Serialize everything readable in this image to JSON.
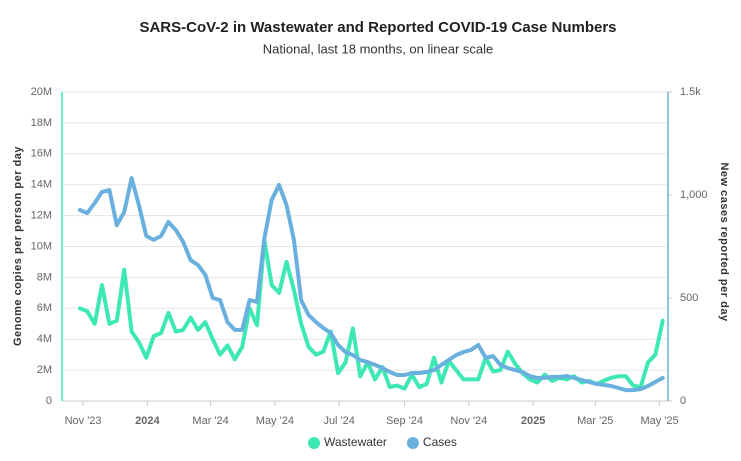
{
  "chart_data": {
    "type": "line",
    "title": "SARS-CoV-2 in Wastewater and Reported COVID-19 Case Numbers",
    "subtitle": "National, last 18 months, on linear scale",
    "ylabel": "Genome copies per person per day",
    "y2label": "New cases reported per day",
    "x": [
      "2023-10-29",
      "2023-11-05",
      "2023-11-12",
      "2023-11-19",
      "2023-11-26",
      "2023-12-03",
      "2023-12-10",
      "2023-12-17",
      "2023-12-24",
      "2023-12-31",
      "2024-01-07",
      "2024-01-14",
      "2024-01-21",
      "2024-01-28",
      "2024-02-04",
      "2024-02-11",
      "2024-02-18",
      "2024-02-25",
      "2024-03-03",
      "2024-03-10",
      "2024-03-17",
      "2024-03-24",
      "2024-03-31",
      "2024-04-07",
      "2024-04-14",
      "2024-04-21",
      "2024-04-28",
      "2024-05-05",
      "2024-05-12",
      "2024-05-19",
      "2024-05-26",
      "2024-06-02",
      "2024-06-09",
      "2024-06-16",
      "2024-06-23",
      "2024-06-30",
      "2024-07-07",
      "2024-07-14",
      "2024-07-21",
      "2024-07-28",
      "2024-08-04",
      "2024-08-11",
      "2024-08-18",
      "2024-08-25",
      "2024-09-01",
      "2024-09-08",
      "2024-09-15",
      "2024-09-22",
      "2024-09-29",
      "2024-10-06",
      "2024-10-13",
      "2024-10-20",
      "2024-10-27",
      "2024-11-03",
      "2024-11-10",
      "2024-11-17",
      "2024-11-24",
      "2024-12-01",
      "2024-12-08",
      "2024-12-15",
      "2024-12-22",
      "2024-12-29",
      "2025-01-05",
      "2025-01-12",
      "2025-01-19",
      "2025-01-26",
      "2025-02-02",
      "2025-02-09",
      "2025-02-16",
      "2025-02-23",
      "2025-03-02",
      "2025-03-09",
      "2025-03-16",
      "2025-03-23",
      "2025-03-30",
      "2025-04-06",
      "2025-04-13",
      "2025-04-20",
      "2025-04-27",
      "2025-05-04"
    ],
    "xlim": [
      "2023-10-12",
      "2025-05-09"
    ],
    "xticks": [
      {
        "value": "2023-11-01",
        "label": "Nov '23"
      },
      {
        "value": "2024-01-01",
        "label": "2024"
      },
      {
        "value": "2024-03-01",
        "label": "Mar '24"
      },
      {
        "value": "2024-05-01",
        "label": "May '24"
      },
      {
        "value": "2024-07-01",
        "label": "Jul '24"
      },
      {
        "value": "2024-09-01",
        "label": "Sep '24"
      },
      {
        "value": "2024-11-01",
        "label": "Nov '24"
      },
      {
        "value": "2025-01-01",
        "label": "2025"
      },
      {
        "value": "2025-03-01",
        "label": "Mar '25"
      },
      {
        "value": "2025-05-01",
        "label": "May '25"
      }
    ],
    "ylim": [
      0,
      20000000
    ],
    "yticks": [
      0,
      {
        "value": 2000000,
        "label": "2M"
      },
      {
        "value": 4000000,
        "label": "4M"
      },
      {
        "value": 6000000,
        "label": "6M"
      },
      {
        "value": 8000000,
        "label": "8M"
      },
      {
        "value": 10000000,
        "label": "10M"
      },
      {
        "value": 12000000,
        "label": "12M"
      },
      {
        "value": 14000000,
        "label": "14M"
      },
      {
        "value": 16000000,
        "label": "16M"
      },
      {
        "value": 18000000,
        "label": "18M"
      },
      {
        "value": 20000000,
        "label": "20M"
      }
    ],
    "y2lim": [
      0,
      1500
    ],
    "y2ticks": [
      0,
      500,
      {
        "value": 1000,
        "label": "1,000"
      },
      {
        "value": 1500,
        "label": "1.5k"
      }
    ],
    "grid": true,
    "legend": "bottom",
    "series": [
      {
        "name": "Wastewater",
        "color": "#3ee8b5",
        "axis": "y",
        "values": [
          6000000,
          5800000,
          5000000,
          7500000,
          5000000,
          5200000,
          8500000,
          4500000,
          3800000,
          2800000,
          4200000,
          4400000,
          5700000,
          4500000,
          4600000,
          5400000,
          4600000,
          5100000,
          4000000,
          3000000,
          3600000,
          2700000,
          3500000,
          6000000,
          4900000,
          10400000,
          7500000,
          7000000,
          9000000,
          7200000,
          5000000,
          3500000,
          3000000,
          3200000,
          4500000,
          1800000,
          2500000,
          4700000,
          1600000,
          2500000,
          1400000,
          2200000,
          900000,
          1000000,
          800000,
          1700000,
          900000,
          1100000,
          2800000,
          1200000,
          2600000,
          2000000,
          1400000,
          1400000,
          1400000,
          2800000,
          1900000,
          2000000,
          3200000,
          2400000,
          1800000,
          1400000,
          1200000,
          1700000,
          1300000,
          1500000,
          1400000,
          1600000,
          1200000,
          1300000,
          1100000,
          1300000,
          1500000,
          1600000,
          1600000,
          1000000,
          900000,
          2500000,
          3000000,
          5200000
        ]
      },
      {
        "name": "Cases",
        "color": "#6ab0de",
        "axis": "y2",
        "values": [
          927,
          912,
          961,
          1015,
          1024,
          854,
          917,
          1082,
          951,
          801,
          782,
          801,
          869,
          830,
          772,
          684,
          660,
          612,
          500,
          490,
          383,
          345,
          345,
          490,
          481,
          791,
          976,
          1049,
          951,
          782,
          490,
          417,
          383,
          354,
          330,
          272,
          238,
          223,
          199,
          189,
          175,
          160,
          141,
          126,
          126,
          136,
          136,
          141,
          150,
          175,
          199,
          223,
          238,
          248,
          272,
          209,
          218,
          175,
          160,
          150,
          141,
          121,
          112,
          112,
          117,
          117,
          121,
          112,
          102,
          92,
          83,
          78,
          73,
          63,
          53,
          53,
          58,
          73,
          92,
          112
        ]
      }
    ]
  }
}
